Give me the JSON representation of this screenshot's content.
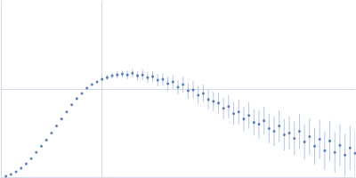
{
  "chart_data": {
    "type": "scatter",
    "marker": "circle",
    "color": "#3a62b3",
    "grid": true,
    "tick_labels": false,
    "xlim": [
      0,
      3.5
    ],
    "ylim": [
      0,
      2
    ],
    "xticks": [
      1
    ],
    "yticks": [
      1
    ],
    "x": [
      0.05,
      0.1,
      0.15,
      0.2,
      0.25,
      0.3,
      0.35,
      0.4,
      0.45,
      0.5,
      0.55,
      0.6,
      0.65,
      0.7,
      0.75,
      0.8,
      0.85,
      0.9,
      0.95,
      1.0,
      1.05,
      1.1,
      1.15,
      1.2,
      1.25,
      1.3,
      1.35,
      1.4,
      1.45,
      1.5,
      1.55,
      1.6,
      1.65,
      1.7,
      1.75,
      1.8,
      1.85,
      1.9,
      1.95,
      2.0,
      2.05,
      2.1,
      2.15,
      2.2,
      2.25,
      2.3,
      2.35,
      2.4,
      2.45,
      2.5,
      2.55,
      2.6,
      2.65,
      2.7,
      2.75,
      2.8,
      2.85,
      2.9,
      2.95,
      3.0,
      3.05,
      3.1,
      3.15,
      3.2,
      3.25,
      3.3,
      3.35,
      3.4,
      3.45,
      3.5
    ],
    "values": [
      0.01,
      0.03,
      0.06,
      0.1,
      0.15,
      0.21,
      0.28,
      0.35,
      0.42,
      0.5,
      0.58,
      0.66,
      0.74,
      0.82,
      0.89,
      0.95,
      1.01,
      1.05,
      1.08,
      1.11,
      1.13,
      1.15,
      1.16,
      1.17,
      1.16,
      1.18,
      1.15,
      1.16,
      1.13,
      1.14,
      1.1,
      1.11,
      1.06,
      1.08,
      1.02,
      1.05,
      0.98,
      0.99,
      0.93,
      0.95,
      0.88,
      0.86,
      0.84,
      0.78,
      0.8,
      0.72,
      0.74,
      0.66,
      0.7,
      0.62,
      0.6,
      0.64,
      0.55,
      0.52,
      0.58,
      0.48,
      0.5,
      0.44,
      0.52,
      0.4,
      0.46,
      0.35,
      0.43,
      0.3,
      0.41,
      0.28,
      0.36,
      0.25,
      0.33,
      0.27
    ],
    "errors": [
      0.005,
      0.005,
      0.005,
      0.005,
      0.005,
      0.005,
      0.005,
      0.005,
      0.005,
      0.005,
      0.01,
      0.01,
      0.01,
      0.01,
      0.01,
      0.01,
      0.01,
      0.01,
      0.01,
      0.01,
      0.03,
      0.03,
      0.04,
      0.04,
      0.05,
      0.05,
      0.05,
      0.06,
      0.06,
      0.06,
      0.07,
      0.07,
      0.08,
      0.08,
      0.08,
      0.09,
      0.09,
      0.1,
      0.1,
      0.1,
      0.11,
      0.11,
      0.12,
      0.12,
      0.13,
      0.13,
      0.14,
      0.14,
      0.15,
      0.15,
      0.16,
      0.16,
      0.17,
      0.17,
      0.18,
      0.18,
      0.19,
      0.19,
      0.2,
      0.2,
      0.21,
      0.21,
      0.22,
      0.22,
      0.23,
      0.23,
      0.24,
      0.24,
      0.25,
      0.25
    ]
  }
}
